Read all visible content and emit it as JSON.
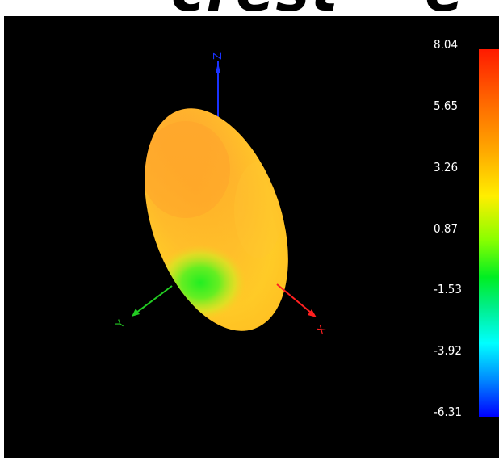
{
  "top_banner": {
    "text": "crest    e"
  },
  "viewport": {
    "background": "#000000",
    "object": "ellipsoid-surface"
  },
  "axes": {
    "z": {
      "label": "Z",
      "color": "#1a33ff"
    },
    "x": {
      "label": "X",
      "color": "#ff2020"
    },
    "y": {
      "label": "Y",
      "color": "#22cc22"
    }
  },
  "colorbar": {
    "max_label": "8.04",
    "ticks": [
      "8.04",
      "5.65",
      "3.26",
      "0.87",
      "-1.53",
      "-3.92",
      "-6.31"
    ],
    "top_color": "#ff1a00",
    "bottom_color": "#0000ff"
  }
}
